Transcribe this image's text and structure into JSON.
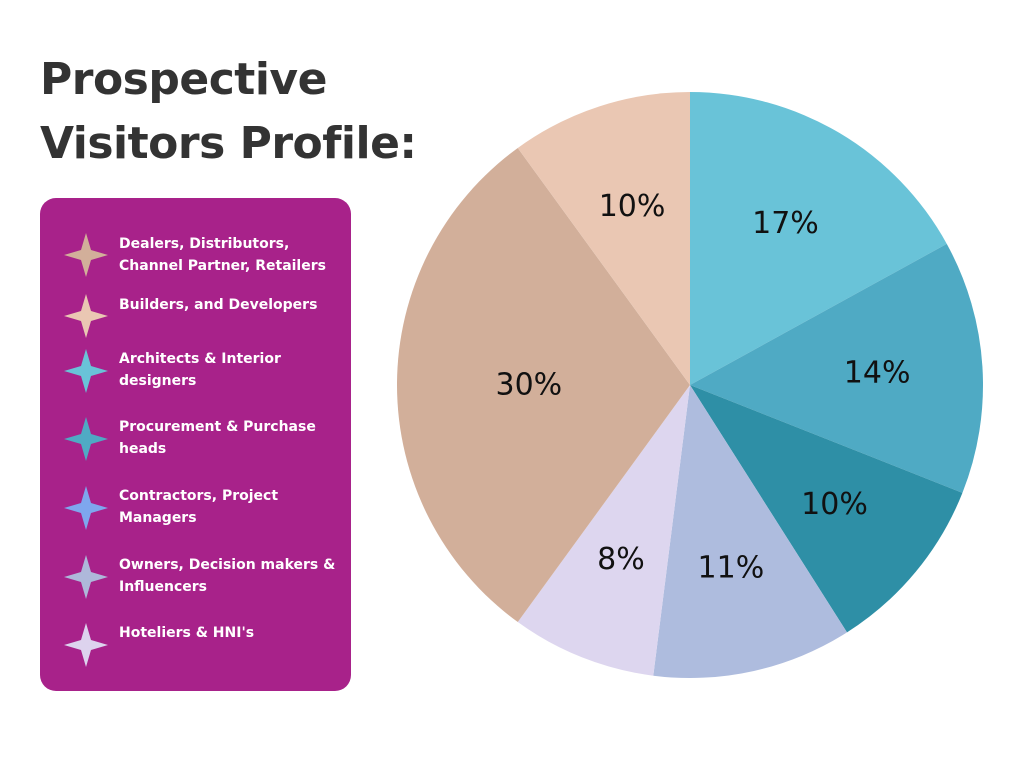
{
  "title": {
    "line1": "Prospective",
    "line2": "Visitors Profile:"
  },
  "colors": {
    "title_text": "#333333",
    "legend_background": "#A8228A",
    "legend_text": "#FFFFFF"
  },
  "legend": {
    "items": [
      {
        "label": "Dealers, Distributors, Channel Partner, Retailers",
        "color": "#D2AF9A",
        "icon": "four-point-star-icon"
      },
      {
        "label": "Builders, and Developers",
        "color": "#EAC7B3",
        "icon": "four-point-star-icon"
      },
      {
        "label": "Architects & Interior designers",
        "color": "#69C3D8",
        "icon": "four-point-star-icon"
      },
      {
        "label": "Procurement & Purchase heads",
        "color": "#4FAAC4",
        "icon": "four-point-star-icon"
      },
      {
        "label": "Contractors, Project Managers",
        "color": "#7EA7EE",
        "icon": "four-point-star-icon"
      },
      {
        "label": "Owners, Decision makers & Influencers",
        "color": "#AEB8DA",
        "icon": "four-point-star-icon"
      },
      {
        "label": "Hoteliers & HNI's",
        "color": "#DDD3EE",
        "icon": "four-point-star-icon"
      }
    ]
  },
  "chart_data": {
    "type": "pie",
    "title": "Prospective Visitors Profile:",
    "legend_placement": "left",
    "slices": [
      {
        "value": 17,
        "label": "17%",
        "color": "#69C3D8"
      },
      {
        "value": 14,
        "label": "14%",
        "color": "#4FAAC4"
      },
      {
        "value": 10,
        "label": "10%",
        "color": "#2E8FA6"
      },
      {
        "value": 11,
        "label": "11%",
        "color": "#AEBCDE"
      },
      {
        "value": 8,
        "label": "8%",
        "color": "#DDD6EF"
      },
      {
        "value": 30,
        "label": "30%",
        "color": "#D2AF9A"
      },
      {
        "value": 10,
        "label": "10%",
        "color": "#EAC7B3"
      }
    ]
  }
}
